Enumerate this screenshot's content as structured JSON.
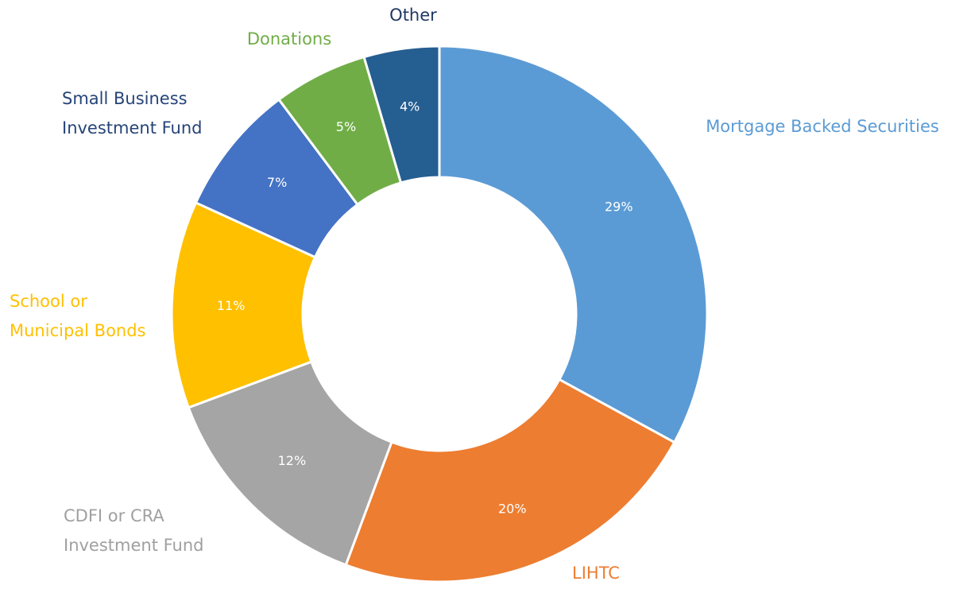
{
  "chart_data": {
    "type": "donut",
    "categories": [
      "Mortgage Backed Securities",
      "LIHTC",
      "CDFI or CRA Investment Fund",
      "School or Municipal Bonds",
      "Small Business Investment Fund",
      "Donations",
      "Other"
    ],
    "values": [
      29,
      20,
      12,
      11,
      7,
      5,
      4
    ],
    "value_labels": [
      "29%",
      "20%",
      "12%",
      "11%",
      "7%",
      "5%",
      "4%"
    ],
    "colors": [
      "#5b9bd5",
      "#ed7d31",
      "#a5a5a5",
      "#ffc000",
      "#4472c4",
      "#70ad47",
      "#255e91"
    ],
    "label_colors": [
      "#5b9bd5",
      "#ed7d31",
      "#a0a0a0",
      "#ffc000",
      "#264478",
      "#70ad47",
      "#1f3864"
    ]
  }
}
